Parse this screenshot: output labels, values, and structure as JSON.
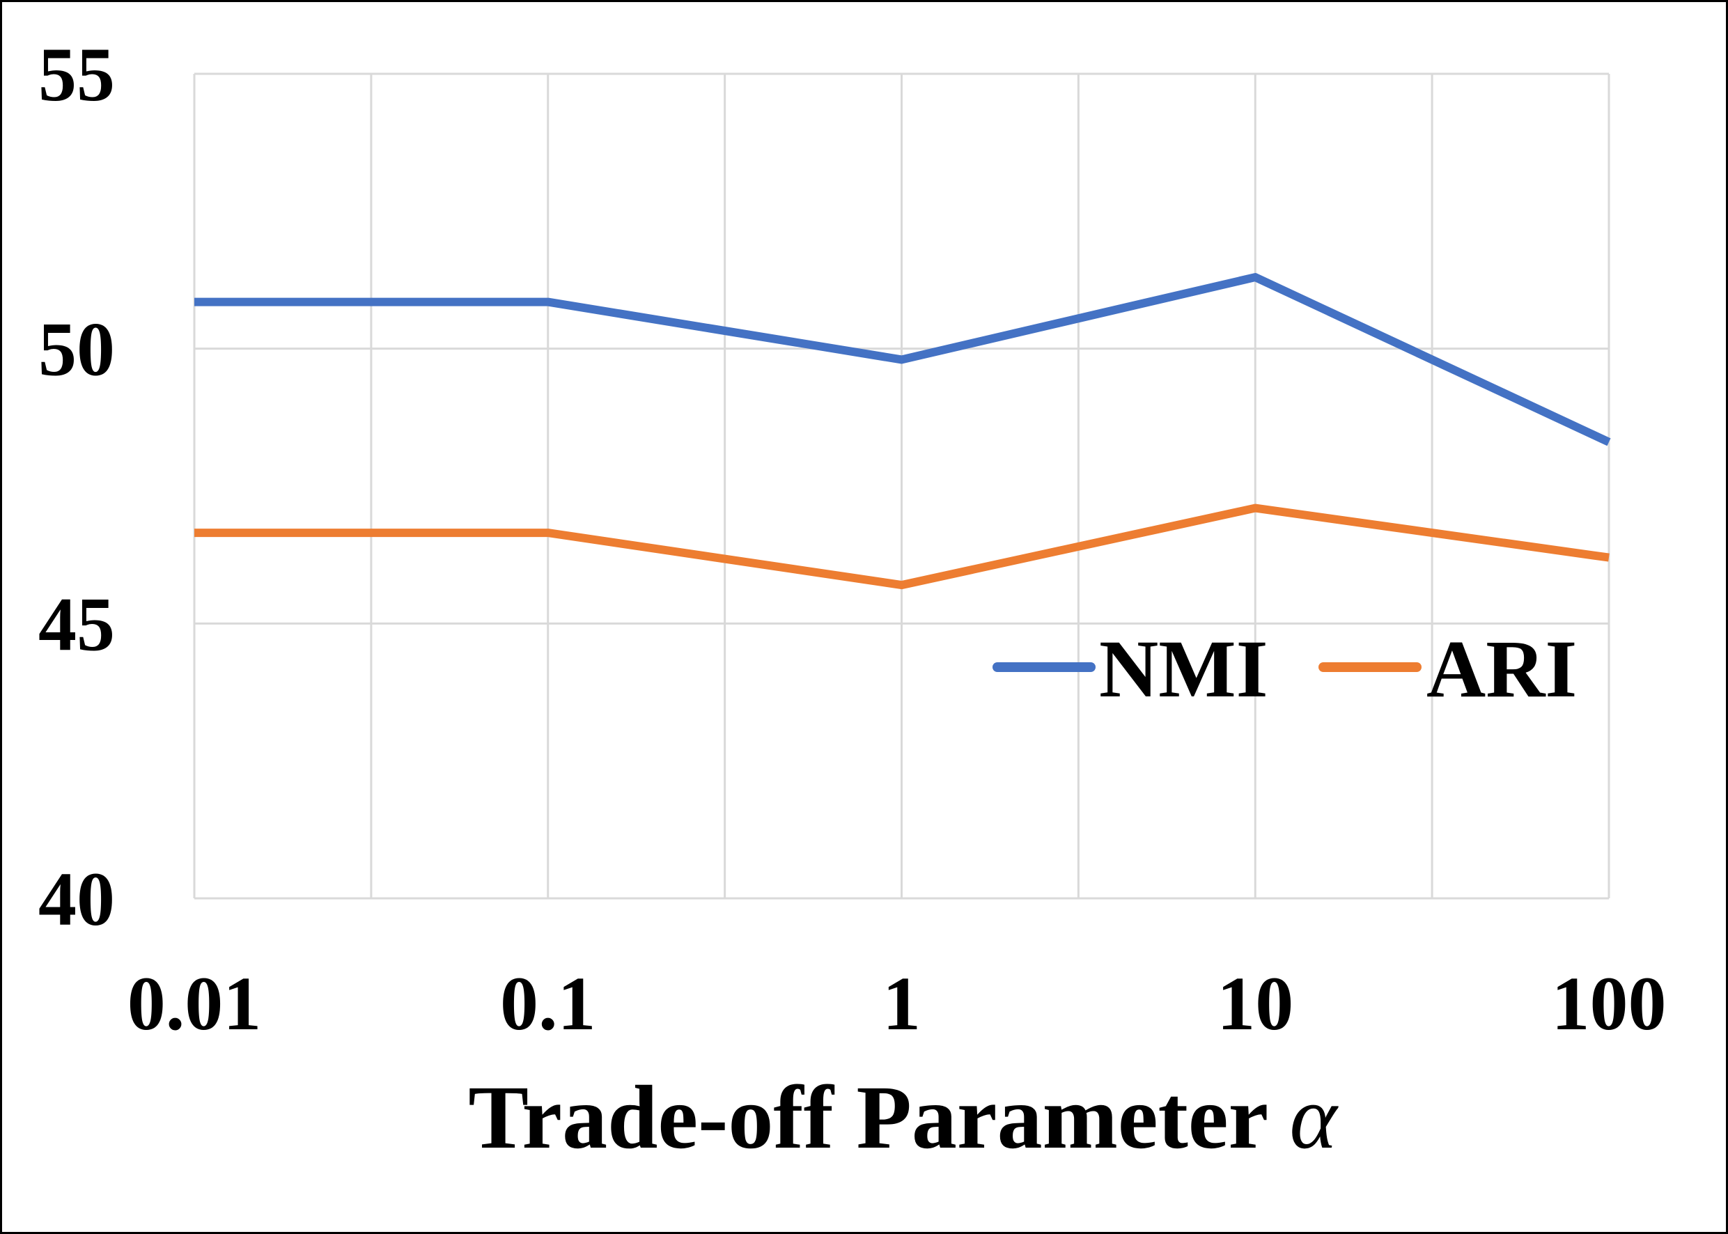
{
  "chart_data": {
    "type": "line",
    "x": [
      "0.01",
      "0.1",
      "1",
      "10",
      "100"
    ],
    "xscale": "log",
    "xlabel": "Trade-off Parameter",
    "xlabel_symbol": "α",
    "ylabel": "",
    "ylim": [
      40,
      55
    ],
    "yticks": [
      40,
      45,
      50,
      55
    ],
    "grid": true,
    "legend": "center-right",
    "series": [
      {
        "name": "NMI",
        "color": "#4472C4",
        "values": [
          50.85,
          50.85,
          49.8,
          51.3,
          48.3
        ]
      },
      {
        "name": "ARI",
        "color": "#ED7D31",
        "values": [
          46.65,
          46.65,
          45.7,
          47.1,
          46.2
        ]
      }
    ]
  }
}
